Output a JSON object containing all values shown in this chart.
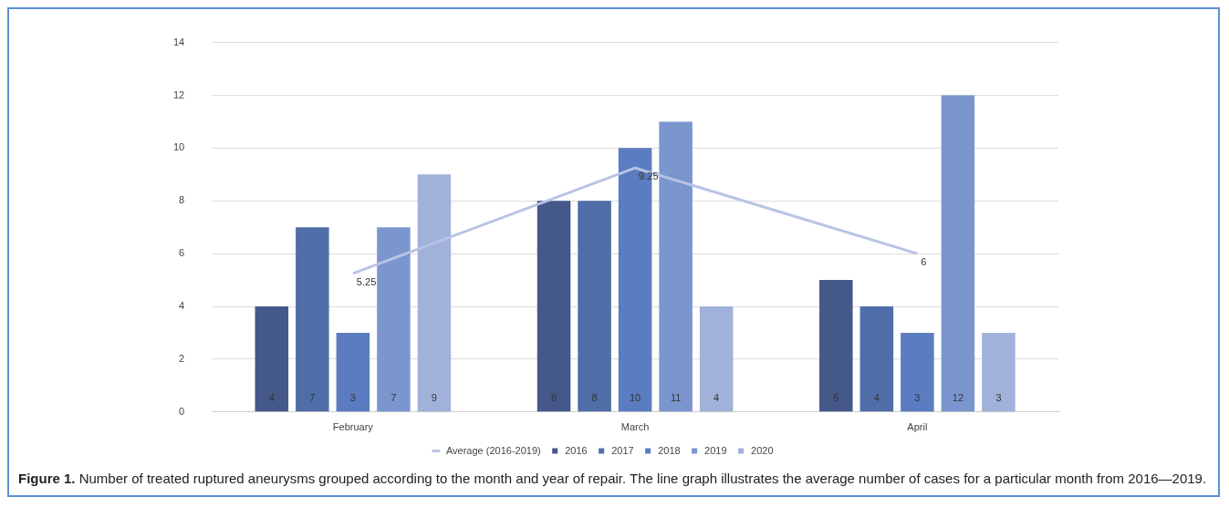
{
  "chart_data": {
    "type": "bar",
    "categories": [
      "February",
      "March",
      "April"
    ],
    "series": [
      {
        "name": "2016",
        "color": "#44598a",
        "values": [
          4,
          8,
          5
        ]
      },
      {
        "name": "2017",
        "color": "#4f6ea8",
        "values": [
          7,
          8,
          4
        ]
      },
      {
        "name": "2018",
        "color": "#5b7cc0",
        "values": [
          3,
          10,
          3
        ]
      },
      {
        "name": "2019",
        "color": "#7b96cf",
        "values": [
          7,
          11,
          12
        ]
      },
      {
        "name": "2020",
        "color": "#a0b1da",
        "values": [
          9,
          4,
          3
        ]
      },
      {
        "name": "Average (2016-2019)",
        "type": "line",
        "color": "#b8c4e4",
        "values": [
          5.25,
          9.25,
          6
        ]
      }
    ],
    "ylim": [
      0,
      14
    ],
    "yticks": [
      0,
      2,
      4,
      6,
      8,
      10,
      12,
      14
    ],
    "grid": "y",
    "legend": "bottom",
    "data_labels": true,
    "marker": "none",
    "annotations": [
      "Figure 1.",
      "Number of treated ruptured aneurysms grouped according to the month and year of repair. The line graph illustrates the average number of cases for a particular month from 2016—2019."
    ]
  }
}
